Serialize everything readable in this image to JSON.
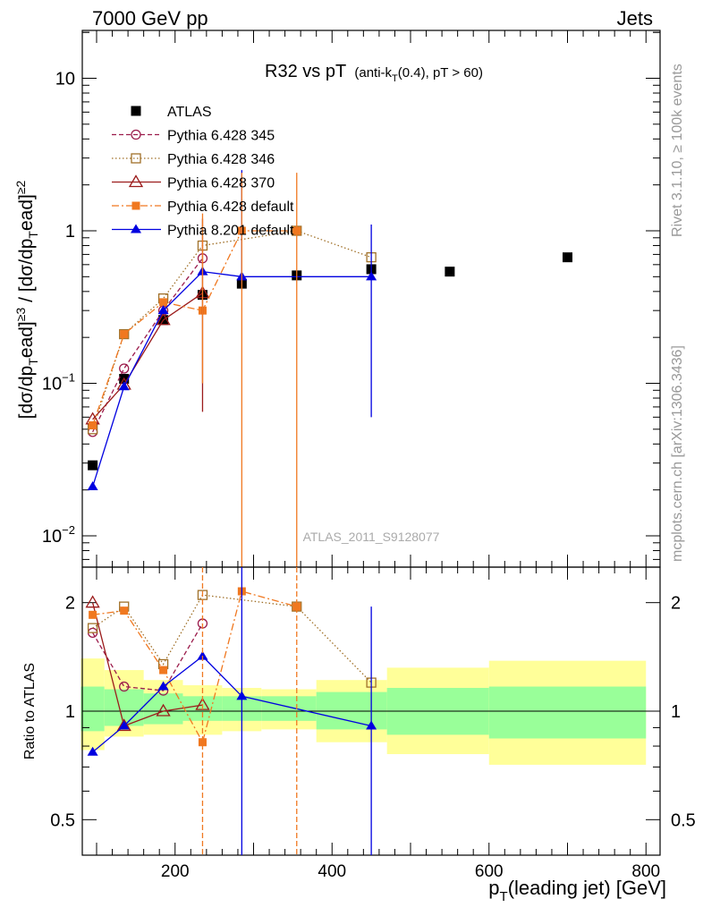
{
  "header": {
    "left": "7000 GeV pp",
    "right": "Jets"
  },
  "side": {
    "rivet": "Rivet 3.1.10, ≥ 100k events",
    "mcplots": "mcplots.cern.ch [arXiv:1306.3436]"
  },
  "watermark": "ATLAS_2011_S9128077",
  "colors": {
    "atlas": "#000000",
    "p345": "#9b1b4b",
    "p346": "#a07028",
    "p370": "#9b1b1b",
    "pdef": "#f07820",
    "p8": "#0000e0",
    "band_yellow": "#ffff99",
    "band_green": "#99ff99"
  },
  "chart_data": {
    "type": "scatter",
    "title": "R32 vs pT",
    "title_sub": "(anti-k",
    "title_sub_T": "T",
    "title_sub_rest": "(0.4), pT > 60)",
    "ylabel": "[dσ/dpᵀead]≥3 / [dσ/dpᵀead]≥2",
    "xlabel": "p",
    "xlabel_T": "T",
    "xlabel_rest": "(leading jet) [GeV]",
    "ratio_ylabel": "Ratio to ATLAS",
    "xlim": [
      70,
      800
    ],
    "ylim": [
      0.006,
      20
    ],
    "ylog": true,
    "ratio_ylim": [
      0.4,
      2.3
    ],
    "x_ticks": [
      200,
      400,
      600,
      800
    ],
    "y_ticks": [
      {
        "label": "10",
        "sup": "−2"
      },
      {
        "label": "10",
        "sup": "−1"
      },
      {
        "label": "1",
        "sup": ""
      },
      {
        "label": "10",
        "sup": ""
      }
    ],
    "ratio_ticks": [
      "0.5",
      "1",
      "2"
    ],
    "legend_placement": "top-left",
    "series": [
      {
        "name": "ATLAS",
        "marker": "square-filled",
        "line": "none",
        "x": [
          95,
          135,
          185,
          235,
          285,
          355,
          450,
          550,
          700
        ],
        "y": [
          0.029,
          0.107,
          0.26,
          0.38,
          0.45,
          0.51,
          0.56,
          0.54,
          0.67
        ]
      },
      {
        "name": "Pythia 6.428 345",
        "marker": "circle-open",
        "line": "dashed",
        "x": [
          95,
          135,
          185,
          235
        ],
        "y": [
          0.048,
          0.125,
          0.3,
          0.66
        ],
        "ratio": [
          1.65,
          1.17,
          1.14,
          1.75
        ]
      },
      {
        "name": "Pythia 6.428 346",
        "marker": "square-open",
        "line": "dotted",
        "x": [
          95,
          135,
          185,
          235,
          355,
          450
        ],
        "y": [
          0.05,
          0.21,
          0.36,
          0.8,
          1.0,
          0.67
        ],
        "ratio": [
          1.7,
          1.95,
          1.35,
          2.1,
          1.95,
          1.2
        ]
      },
      {
        "name": "Pythia 6.428 370",
        "marker": "triangle-open",
        "line": "solid",
        "x": [
          95,
          135,
          185,
          235
        ],
        "y": [
          0.058,
          0.098,
          0.26,
          0.39
        ],
        "ratio": [
          2.0,
          0.91,
          1.0,
          1.04
        ]
      },
      {
        "name": "Pythia 6.428 default",
        "marker": "square-filled-small",
        "line": "dashdot",
        "x": [
          95,
          135,
          185,
          235,
          285,
          355
        ],
        "y": [
          0.053,
          0.21,
          0.34,
          0.3,
          1.0,
          1.0
        ],
        "ratio": [
          1.85,
          1.9,
          1.3,
          0.82,
          2.15,
          1.95
        ]
      },
      {
        "name": "Pythia 8.201 default",
        "marker": "triangle-filled",
        "line": "solid",
        "x": [
          95,
          135,
          185,
          235,
          285,
          450
        ],
        "y": [
          0.021,
          0.095,
          0.3,
          0.54,
          0.5,
          0.5
        ],
        "ratio": [
          0.77,
          0.91,
          1.17,
          1.42,
          1.1,
          0.91
        ]
      }
    ]
  }
}
